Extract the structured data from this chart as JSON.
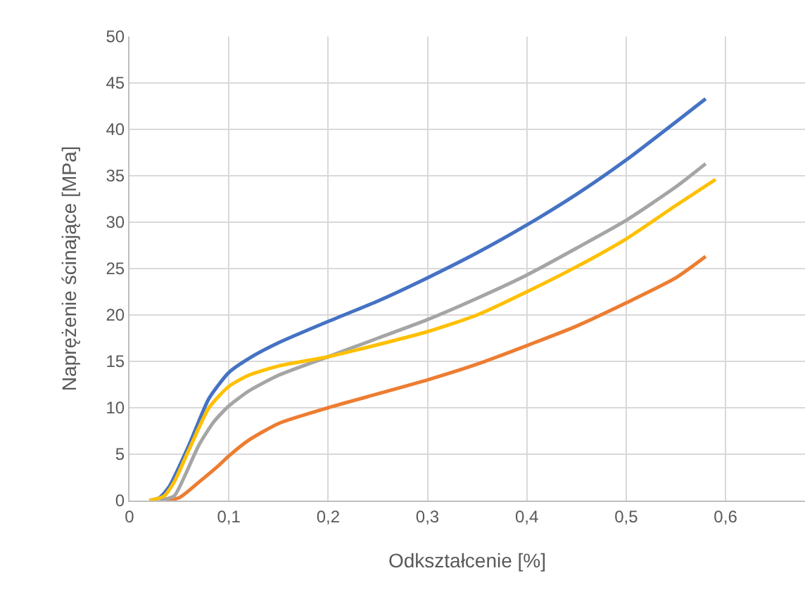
{
  "chart_data": {
    "type": "line",
    "xlabel": "Odkształcenie [%]",
    "ylabel": "Naprężenie ścinające [MPa]",
    "xlim": [
      0,
      0.68
    ],
    "xticks": [
      0,
      {
        "value": 0.1,
        "label": "0,1"
      },
      {
        "value": 0.2,
        "label": "0,2"
      },
      {
        "value": 0.3,
        "label": "0,3"
      },
      {
        "value": 0.4,
        "label": "0,4"
      },
      {
        "value": 0.5,
        "label": "0,5"
      },
      {
        "value": 0.6,
        "label": "0,6"
      }
    ],
    "ylim": [
      0,
      50
    ],
    "yticks": [
      0,
      5,
      10,
      15,
      20,
      25,
      30,
      35,
      40,
      45,
      50
    ],
    "grid": true,
    "marker": "none",
    "line_style": "solid",
    "series": [
      {
        "color": "#4472c4",
        "x": [
          0.02,
          0.03,
          0.04,
          0.06,
          0.08,
          0.1,
          0.12,
          0.15,
          0.2,
          0.25,
          0.3,
          0.35,
          0.4,
          0.45,
          0.5,
          0.55,
          0.58
        ],
        "values": [
          0,
          0.3,
          1.5,
          6,
          11,
          13.8,
          15.3,
          17,
          19.3,
          21.5,
          24,
          26.7,
          29.7,
          33,
          36.7,
          40.8,
          43.3
        ]
      },
      {
        "color": "#ed7d31",
        "x": [
          0.035,
          0.05,
          0.07,
          0.09,
          0.1,
          0.12,
          0.15,
          0.2,
          0.25,
          0.3,
          0.35,
          0.4,
          0.45,
          0.5,
          0.55,
          0.58
        ],
        "values": [
          0,
          0.3,
          2,
          3.8,
          4.8,
          6.5,
          8.3,
          10,
          11.5,
          13,
          14.7,
          16.7,
          18.8,
          21.3,
          24,
          26.3
        ]
      },
      {
        "color": "#a5a5a5",
        "x": [
          0.03,
          0.045,
          0.055,
          0.07,
          0.085,
          0.1,
          0.12,
          0.15,
          0.2,
          0.25,
          0.3,
          0.35,
          0.4,
          0.45,
          0.5,
          0.55,
          0.58
        ],
        "values": [
          0,
          0.5,
          2.5,
          6,
          8.5,
          10.2,
          11.8,
          13.5,
          15.5,
          17.5,
          19.5,
          21.8,
          24.3,
          27.2,
          30.2,
          33.8,
          36.3
        ]
      },
      {
        "color": "#ffc000",
        "x": [
          0.02,
          0.035,
          0.045,
          0.06,
          0.08,
          0.1,
          0.12,
          0.15,
          0.2,
          0.25,
          0.3,
          0.35,
          0.4,
          0.45,
          0.5,
          0.55,
          0.59
        ],
        "values": [
          0,
          0.5,
          2,
          5.5,
          10,
          12.3,
          13.5,
          14.5,
          15.5,
          16.8,
          18.2,
          20,
          22.5,
          25.2,
          28.2,
          31.8,
          34.6
        ]
      }
    ]
  }
}
